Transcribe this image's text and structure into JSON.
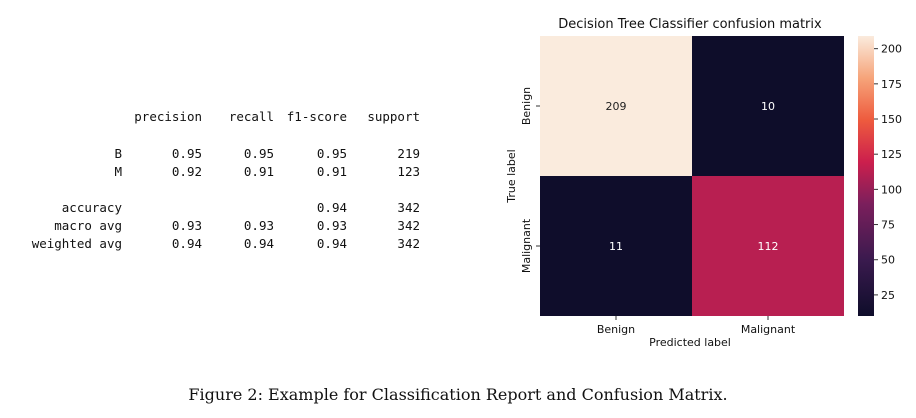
{
  "report": {
    "headers": [
      "precision",
      "recall",
      "f1-score",
      "support"
    ],
    "rows": [
      {
        "label": "B",
        "precision": "0.95",
        "recall": "0.95",
        "f1": "0.95",
        "support": "219"
      },
      {
        "label": "M",
        "precision": "0.92",
        "recall": "0.91",
        "f1": "0.91",
        "support": "123"
      },
      {
        "label": "accuracy",
        "precision": "",
        "recall": "",
        "f1": "0.94",
        "support": "342"
      },
      {
        "label": "macro avg",
        "precision": "0.93",
        "recall": "0.93",
        "f1": "0.93",
        "support": "342"
      },
      {
        "label": "weighted avg",
        "precision": "0.94",
        "recall": "0.94",
        "f1": "0.94",
        "support": "342"
      }
    ]
  },
  "chart_data": {
    "type": "heatmap",
    "title": "Decision Tree Classifier confusion matrix",
    "xlabel": "Predicted label",
    "ylabel": "True label",
    "x_categories": [
      "Benign",
      "Malignant"
    ],
    "y_categories": [
      "Benign",
      "Malignant"
    ],
    "values": [
      [
        209,
        10
      ],
      [
        11,
        112
      ]
    ],
    "colorbar": {
      "min": 10,
      "max": 209,
      "ticks": [
        25,
        50,
        75,
        100,
        125,
        150,
        175,
        200
      ]
    },
    "colormap": "rocket",
    "legend": "colorbar-right"
  },
  "caption": "Figure 2: Example for Classification Report and Confusion Matrix."
}
